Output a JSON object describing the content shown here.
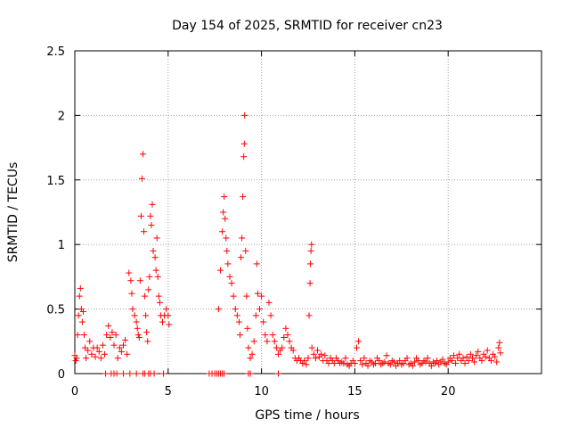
{
  "chart_data": {
    "type": "scatter",
    "title": "Day 154 of 2025, SRMTID for receiver cn23",
    "xlabel": "GPS time / hours",
    "ylabel": "SRMTID / TECUs",
    "xlim": [
      0,
      25
    ],
    "ylim": [
      0,
      2.5
    ],
    "xticks": [
      "0",
      "5",
      "10",
      "15",
      "20"
    ],
    "xtick_values": [
      0,
      5,
      10,
      15,
      20
    ],
    "yticks": [
      "0",
      "0.5",
      "1",
      "1.5",
      "2",
      "2.5"
    ],
    "ytick_values": [
      0,
      0.5,
      1,
      1.5,
      2,
      2.5
    ],
    "grid": true,
    "marker": "+",
    "color": "#ff0000",
    "series": [
      {
        "name": "SRMTID",
        "points": [
          [
            0.0,
            0.14
          ],
          [
            0.05,
            0.1
          ],
          [
            0.1,
            0.12
          ],
          [
            0.15,
            0.3
          ],
          [
            0.2,
            0.45
          ],
          [
            0.25,
            0.6
          ],
          [
            0.3,
            0.66
          ],
          [
            0.35,
            0.5
          ],
          [
            0.4,
            0.4
          ],
          [
            0.45,
            0.48
          ],
          [
            0.5,
            0.3
          ],
          [
            0.55,
            0.2
          ],
          [
            0.6,
            0.12
          ],
          [
            0.7,
            0.18
          ],
          [
            0.8,
            0.25
          ],
          [
            0.9,
            0.15
          ],
          [
            1.0,
            0.2
          ],
          [
            1.1,
            0.13
          ],
          [
            1.2,
            0.2
          ],
          [
            1.3,
            0.17
          ],
          [
            1.4,
            0.12
          ],
          [
            1.5,
            0.22
          ],
          [
            1.6,
            0.15
          ],
          [
            1.7,
            0.3
          ],
          [
            1.8,
            0.37
          ],
          [
            1.9,
            0.28
          ],
          [
            2.0,
            0.32
          ],
          [
            2.1,
            0.22
          ],
          [
            2.2,
            0.3
          ],
          [
            2.3,
            0.12
          ],
          [
            2.4,
            0.2
          ],
          [
            2.5,
            0.17
          ],
          [
            2.6,
            0.22
          ],
          [
            2.7,
            0.26
          ],
          [
            2.8,
            0.15
          ],
          [
            2.9,
            0.78
          ],
          [
            3.0,
            0.72
          ],
          [
            3.05,
            0.62
          ],
          [
            3.1,
            0.5
          ],
          [
            3.2,
            0.45
          ],
          [
            3.3,
            0.4
          ],
          [
            3.35,
            0.35
          ],
          [
            3.4,
            0.3
          ],
          [
            3.45,
            0.28
          ],
          [
            3.5,
            0.72
          ],
          [
            3.55,
            1.22
          ],
          [
            3.6,
            1.51
          ],
          [
            3.65,
            1.7
          ],
          [
            3.7,
            1.1
          ],
          [
            3.75,
            0.6
          ],
          [
            3.8,
            0.45
          ],
          [
            3.85,
            0.32
          ],
          [
            3.9,
            0.25
          ],
          [
            3.95,
            0.65
          ],
          [
            4.0,
            0.75
          ],
          [
            4.05,
            1.22
          ],
          [
            4.1,
            1.15
          ],
          [
            4.15,
            1.31
          ],
          [
            4.2,
            0.95
          ],
          [
            4.3,
            0.9
          ],
          [
            4.35,
            0.8
          ],
          [
            4.4,
            1.05
          ],
          [
            4.45,
            0.75
          ],
          [
            4.5,
            0.6
          ],
          [
            4.55,
            0.55
          ],
          [
            4.6,
            0.45
          ],
          [
            4.7,
            0.4
          ],
          [
            4.8,
            0.45
          ],
          [
            4.9,
            0.5
          ],
          [
            5.0,
            0.45
          ],
          [
            5.05,
            0.38
          ],
          [
            7.7,
            0.5
          ],
          [
            7.8,
            0.8
          ],
          [
            7.9,
            1.1
          ],
          [
            7.95,
            1.25
          ],
          [
            8.0,
            1.37
          ],
          [
            8.05,
            1.2
          ],
          [
            8.1,
            1.05
          ],
          [
            8.15,
            0.95
          ],
          [
            8.2,
            0.85
          ],
          [
            8.3,
            0.75
          ],
          [
            8.4,
            0.7
          ],
          [
            8.5,
            0.6
          ],
          [
            8.6,
            0.5
          ],
          [
            8.7,
            0.45
          ],
          [
            8.8,
            0.4
          ],
          [
            8.85,
            0.3
          ],
          [
            8.9,
            0.9
          ],
          [
            8.95,
            1.05
          ],
          [
            9.0,
            1.37
          ],
          [
            9.05,
            1.68
          ],
          [
            9.08,
            1.78
          ],
          [
            9.1,
            2.0
          ],
          [
            9.15,
            0.95
          ],
          [
            9.2,
            0.6
          ],
          [
            9.25,
            0.35
          ],
          [
            9.3,
            0.2
          ],
          [
            9.4,
            0.12
          ],
          [
            9.5,
            0.15
          ],
          [
            9.6,
            0.25
          ],
          [
            9.7,
            0.45
          ],
          [
            9.75,
            0.85
          ],
          [
            9.8,
            0.62
          ],
          [
            9.9,
            0.5
          ],
          [
            10.0,
            0.6
          ],
          [
            10.1,
            0.4
          ],
          [
            10.2,
            0.3
          ],
          [
            10.3,
            0.25
          ],
          [
            10.4,
            0.55
          ],
          [
            10.5,
            0.45
          ],
          [
            10.6,
            0.3
          ],
          [
            10.7,
            0.25
          ],
          [
            10.8,
            0.2
          ],
          [
            10.9,
            0.15
          ],
          [
            11.0,
            0.18
          ],
          [
            11.1,
            0.2
          ],
          [
            11.2,
            0.28
          ],
          [
            11.3,
            0.35
          ],
          [
            11.4,
            0.3
          ],
          [
            11.5,
            0.25
          ],
          [
            11.6,
            0.2
          ],
          [
            11.7,
            0.18
          ],
          [
            11.8,
            0.12
          ],
          [
            11.9,
            0.1
          ],
          [
            12.0,
            0.12
          ],
          [
            12.1,
            0.1
          ],
          [
            12.2,
            0.08
          ],
          [
            12.3,
            0.1
          ],
          [
            12.4,
            0.07
          ],
          [
            12.5,
            0.12
          ],
          [
            12.55,
            0.45
          ],
          [
            12.6,
            0.7
          ],
          [
            12.62,
            0.85
          ],
          [
            12.65,
            0.95
          ],
          [
            12.68,
            1.0
          ],
          [
            12.7,
            0.2
          ],
          [
            12.8,
            0.15
          ],
          [
            12.9,
            0.12
          ],
          [
            13.0,
            0.18
          ],
          [
            13.1,
            0.13
          ],
          [
            13.2,
            0.15
          ],
          [
            13.3,
            0.1
          ],
          [
            13.4,
            0.14
          ],
          [
            13.5,
            0.1
          ],
          [
            13.6,
            0.08
          ],
          [
            13.7,
            0.12
          ],
          [
            13.8,
            0.1
          ],
          [
            13.9,
            0.08
          ],
          [
            14.0,
            0.12
          ],
          [
            14.1,
            0.1
          ],
          [
            14.2,
            0.08
          ],
          [
            14.3,
            0.09
          ],
          [
            14.4,
            0.08
          ],
          [
            14.5,
            0.12
          ],
          [
            14.6,
            0.07
          ],
          [
            14.7,
            0.06
          ],
          [
            14.8,
            0.08
          ],
          [
            14.9,
            0.1
          ],
          [
            15.0,
            0.08
          ],
          [
            15.1,
            0.2
          ],
          [
            15.2,
            0.25
          ],
          [
            15.3,
            0.1
          ],
          [
            15.4,
            0.07
          ],
          [
            15.5,
            0.12
          ],
          [
            15.6,
            0.08
          ],
          [
            15.7,
            0.06
          ],
          [
            15.8,
            0.1
          ],
          [
            15.9,
            0.09
          ],
          [
            16.0,
            0.07
          ],
          [
            16.1,
            0.08
          ],
          [
            16.2,
            0.12
          ],
          [
            16.3,
            0.1
          ],
          [
            16.4,
            0.07
          ],
          [
            16.5,
            0.08
          ],
          [
            16.6,
            0.09
          ],
          [
            16.7,
            0.14
          ],
          [
            16.8,
            0.08
          ],
          [
            16.9,
            0.07
          ],
          [
            17.0,
            0.1
          ],
          [
            17.1,
            0.09
          ],
          [
            17.2,
            0.06
          ],
          [
            17.3,
            0.08
          ],
          [
            17.4,
            0.1
          ],
          [
            17.5,
            0.07
          ],
          [
            17.6,
            0.08
          ],
          [
            17.7,
            0.1
          ],
          [
            17.8,
            0.12
          ],
          [
            17.9,
            0.07
          ],
          [
            18.0,
            0.08
          ],
          [
            18.1,
            0.06
          ],
          [
            18.2,
            0.09
          ],
          [
            18.3,
            0.12
          ],
          [
            18.4,
            0.1
          ],
          [
            18.5,
            0.07
          ],
          [
            18.6,
            0.08
          ],
          [
            18.7,
            0.1
          ],
          [
            18.8,
            0.09
          ],
          [
            18.9,
            0.12
          ],
          [
            19.0,
            0.08
          ],
          [
            19.1,
            0.06
          ],
          [
            19.2,
            0.09
          ],
          [
            19.3,
            0.08
          ],
          [
            19.4,
            0.1
          ],
          [
            19.5,
            0.07
          ],
          [
            19.6,
            0.09
          ],
          [
            19.7,
            0.11
          ],
          [
            19.8,
            0.08
          ],
          [
            19.9,
            0.07
          ],
          [
            20.0,
            0.09
          ],
          [
            20.1,
            0.12
          ],
          [
            20.2,
            0.1
          ],
          [
            20.3,
            0.14
          ],
          [
            20.4,
            0.08
          ],
          [
            20.5,
            0.12
          ],
          [
            20.6,
            0.15
          ],
          [
            20.7,
            0.1
          ],
          [
            20.8,
            0.12
          ],
          [
            20.9,
            0.08
          ],
          [
            21.0,
            0.13
          ],
          [
            21.1,
            0.1
          ],
          [
            21.2,
            0.15
          ],
          [
            21.3,
            0.12
          ],
          [
            21.4,
            0.09
          ],
          [
            21.5,
            0.14
          ],
          [
            21.6,
            0.17
          ],
          [
            21.7,
            0.12
          ],
          [
            21.8,
            0.1
          ],
          [
            21.9,
            0.15
          ],
          [
            22.0,
            0.13
          ],
          [
            22.1,
            0.18
          ],
          [
            22.2,
            0.12
          ],
          [
            22.3,
            0.1
          ],
          [
            22.4,
            0.15
          ],
          [
            22.5,
            0.13
          ],
          [
            22.6,
            0.09
          ],
          [
            22.7,
            0.2
          ],
          [
            22.75,
            0.24
          ],
          [
            22.8,
            0.16
          ]
        ]
      }
    ],
    "zero_points_x": [
      1.65,
      1.95,
      2.1,
      2.25,
      2.6,
      2.95,
      3.3,
      3.65,
      3.75,
      3.95,
      4.05,
      4.25,
      4.75,
      7.2,
      7.35,
      7.5,
      7.6,
      7.7,
      7.8,
      7.9,
      8.0,
      9.3,
      9.4,
      10.9
    ]
  }
}
